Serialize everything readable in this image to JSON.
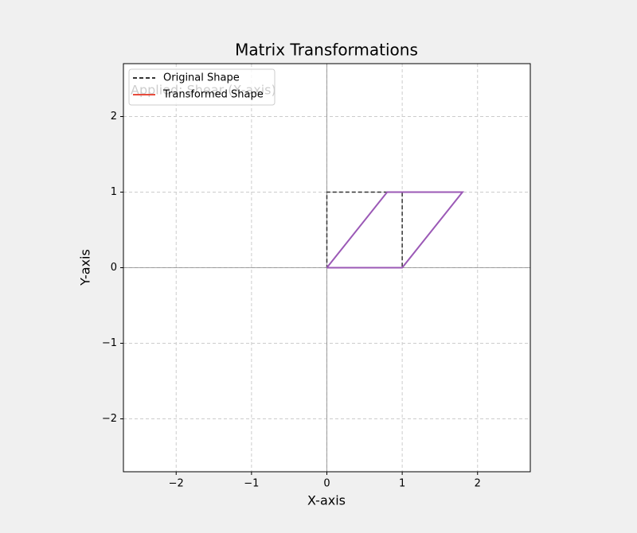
{
  "chart_data": {
    "type": "line",
    "title": "Matrix Transformations",
    "xlabel": "X-axis",
    "ylabel": "Y-axis",
    "annotation": "Applied: Shear (X-axis)",
    "xlim": [
      -2.7,
      2.7
    ],
    "ylim": [
      -2.7,
      2.7
    ],
    "xticks": [
      {
        "value": -2,
        "label": "−2"
      },
      {
        "value": -1,
        "label": "−1"
      },
      0,
      1,
      2
    ],
    "yticks": [
      {
        "value": -2,
        "label": "−2"
      },
      {
        "value": -1,
        "label": "−1"
      },
      0,
      1,
      2
    ],
    "grid": true,
    "legend": "upper left",
    "series": [
      {
        "name": "Original Shape",
        "color": "#333333",
        "dash": true,
        "x": [
          0,
          1,
          1,
          0,
          0
        ],
        "values": [
          0,
          0,
          1,
          1,
          0
        ]
      },
      {
        "name": "Transformed Shape",
        "color": "#9b59b6",
        "legend_color": "#e74c3c",
        "dash": false,
        "x": [
          0,
          1,
          1.8,
          0.8,
          0
        ],
        "values": [
          0,
          0,
          1,
          1,
          0
        ]
      }
    ]
  }
}
